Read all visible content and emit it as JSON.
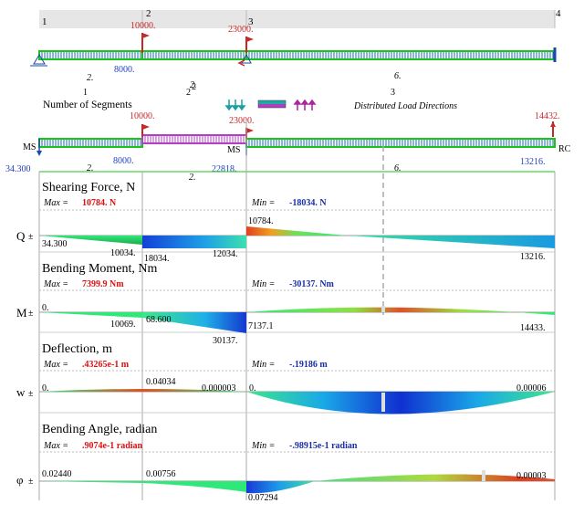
{
  "beam_schematic": {
    "node_labels": [
      "1",
      "2",
      "3",
      "4"
    ],
    "point_loads": [
      "10000.",
      "23000."
    ],
    "support_force": "8000.",
    "segment_lengths": [
      "2.",
      "2.",
      "6."
    ]
  },
  "legend_row": {
    "segment_numbers": [
      "1",
      "2",
      "3"
    ],
    "segment_numbers_alt": "2",
    "segment_count_label": "Number of Segments",
    "direction_label": "Distributed Load Directions"
  },
  "main_beam": {
    "point_loads": [
      "10000.",
      "23000.",
      "14432."
    ],
    "left_support": "MS",
    "left_value": "34.300",
    "support_force": "8000.",
    "middle_support": "MS",
    "middle_value": "22818.",
    "right_value": "13216.",
    "right_support": "RC",
    "segment_lengths": [
      "2.",
      "2.",
      "6."
    ]
  },
  "shear": {
    "title": "Shearing Force, N",
    "max_label": "Max =",
    "max_value": "10784. N",
    "min_label": "Min =",
    "min_value": "-18034. N",
    "axis_label": "Q",
    "values": [
      "10784.",
      "34.300",
      "10034.",
      "18034.",
      "12034.",
      "13216."
    ]
  },
  "moment": {
    "title": "Bending Moment, Nm",
    "max_label": "Max =",
    "max_value": "7399.9 Nm",
    "min_label": "Min =",
    "min_value": "-30137. Nm",
    "axis_label": "M",
    "values": [
      "0.",
      "68.600",
      "10069.",
      "30137.",
      "7137.1",
      "14433."
    ]
  },
  "deflection": {
    "title": "Deflection, m",
    "max_label": "Max =",
    "max_value": ".43265e-1 m",
    "min_label": "Min =",
    "min_value": "-.19186 m",
    "axis_label": "w",
    "values": [
      "0.04034",
      "0.",
      "0.000003",
      "0.",
      "0.00006"
    ]
  },
  "angle": {
    "title": "Bending Angle, radian",
    "max_label": "Max =",
    "max_value": ".9074e-1 radian",
    "min_label": "Min =",
    "min_value": "-.98915e-1 radian",
    "axis_label": "φ",
    "values": [
      "0.02440",
      "0.00756",
      "0.07294",
      "0.00003"
    ]
  },
  "colors": {
    "beam_green": "#19c419",
    "beam_purple": "#b040c0",
    "load_red": "#c62828",
    "value_blue": "#1f3fbf",
    "max_red": "#e01010",
    "min_blue": "#1a2fa8"
  }
}
